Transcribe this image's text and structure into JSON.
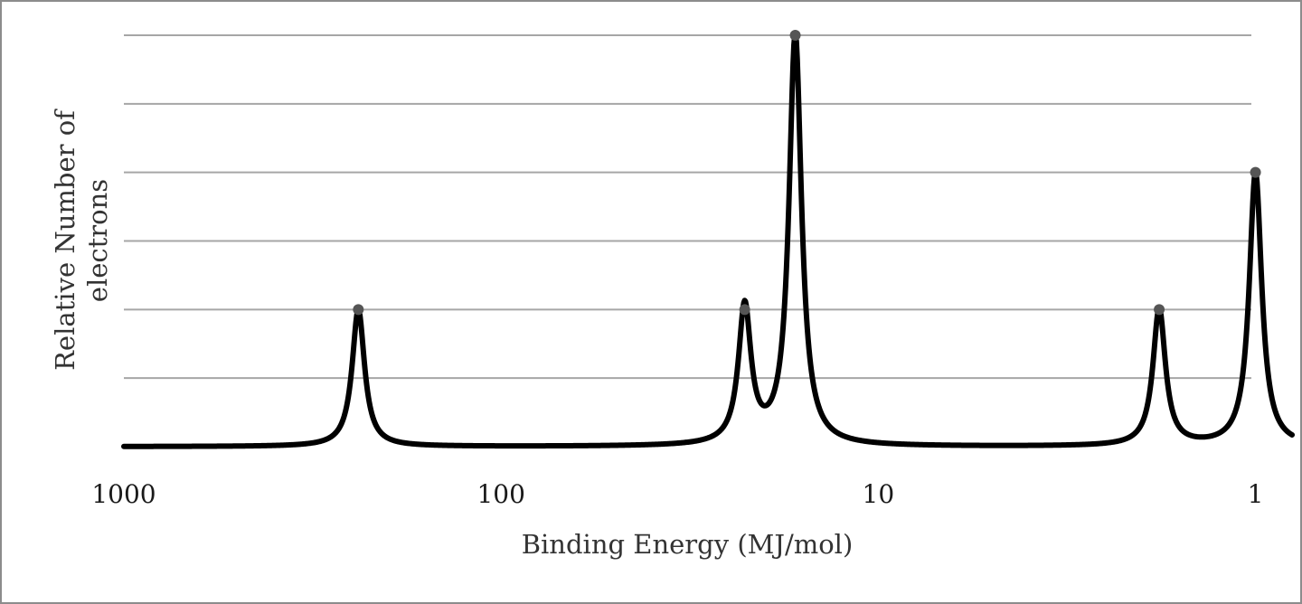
{
  "chart_data": {
    "type": "line",
    "title": "",
    "xlabel": "Binding Energy (MJ/mol)",
    "ylabel_lines": [
      "Relative Number of",
      "electrons"
    ],
    "x_scale": "log",
    "x_reversed": true,
    "xlim": [
      1000,
      0.8
    ],
    "x_ticks": [
      {
        "value": 1000,
        "label": "1000"
      },
      {
        "value": 100,
        "label": "100"
      },
      {
        "value": 10,
        "label": "10"
      },
      {
        "value": 1,
        "label": "1"
      }
    ],
    "ylim": [
      0,
      6
    ],
    "y_gridlines": [
      1,
      2,
      3,
      4,
      5,
      6
    ],
    "y_tick_labels_shown": false,
    "grid": true,
    "line_color": "#000000",
    "grid_color": "#a6a6a6",
    "peaks": [
      {
        "x": 239,
        "y": 2
      },
      {
        "x": 22.6,
        "y": 2
      },
      {
        "x": 16.6,
        "y": 6
      },
      {
        "x": 1.8,
        "y": 2
      },
      {
        "x": 1.0,
        "y": 4
      }
    ]
  }
}
